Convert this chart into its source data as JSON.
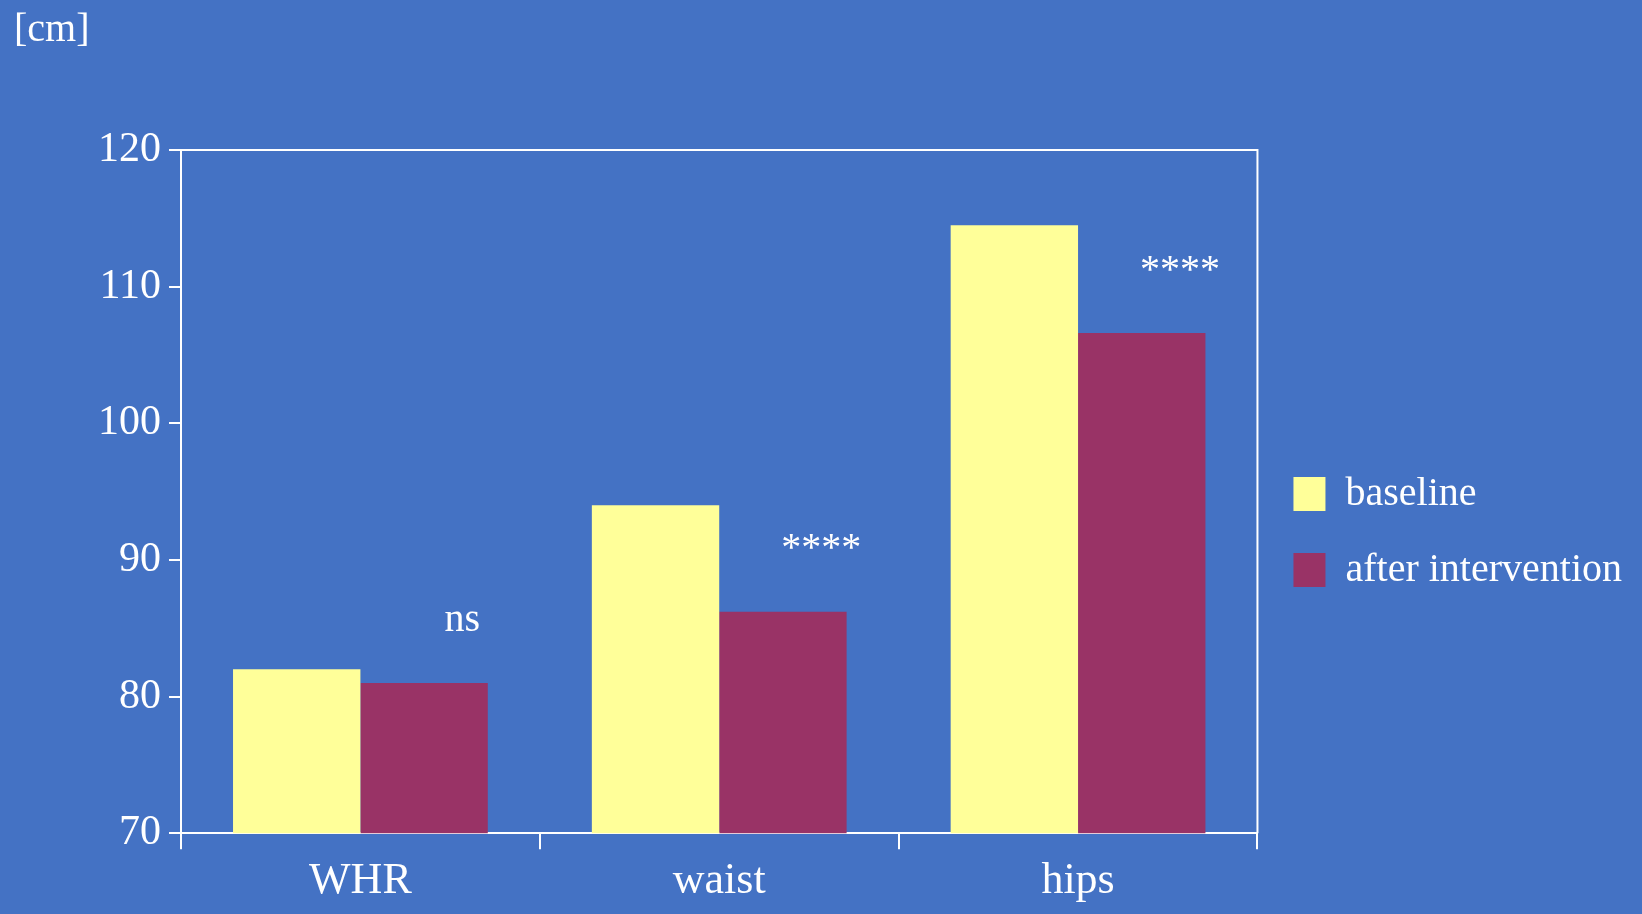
{
  "chart_data": {
    "type": "bar",
    "ylabel": "[cm]",
    "categories": [
      "WHR",
      "waist",
      "hips"
    ],
    "series": [
      {
        "name": "baseline",
        "color": "#ffff99",
        "values": [
          82,
          94,
          114.5
        ]
      },
      {
        "name": "after intervention",
        "color": "#993366",
        "values": [
          81,
          86.2,
          106.6
        ]
      }
    ],
    "ylim": [
      70,
      120
    ],
    "yticks": [
      70,
      80,
      90,
      100,
      110,
      120
    ],
    "grid": false,
    "legend": "right",
    "annotations": [
      "ns",
      "****",
      "****"
    ]
  }
}
